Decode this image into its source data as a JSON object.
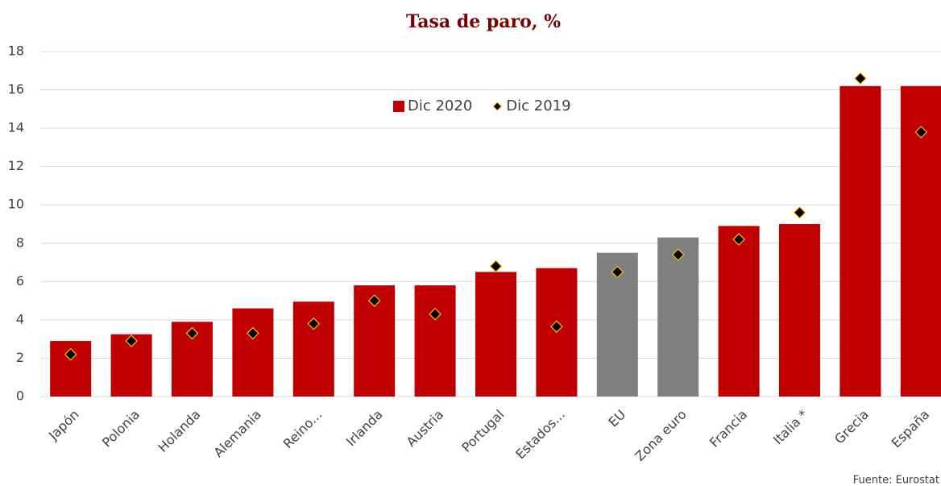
{
  "chart_data": {
    "type": "bar",
    "title": "Tasa de paro, %",
    "categories": [
      "Japón",
      "Polonia",
      "Holanda",
      "Alemania",
      "Reino...",
      "Irlanda",
      "Austria",
      "Portugal",
      "Estados...",
      "EU",
      "Zona euro",
      "Francia",
      "Italia *",
      "Grecia",
      "España"
    ],
    "series": [
      {
        "name": "Dic 2020",
        "kind": "bar",
        "color": "#c00000",
        "point_colors": [
          "#c00000",
          "#c00000",
          "#c00000",
          "#c00000",
          "#c00000",
          "#c00000",
          "#c00000",
          "#c00000",
          "#c00000",
          "#808080",
          "#808080",
          "#c00000",
          "#c00000",
          "#c00000",
          "#c00000"
        ],
        "values": [
          2.9,
          3.25,
          3.9,
          4.6,
          4.95,
          5.8,
          5.8,
          6.5,
          6.7,
          7.5,
          8.3,
          8.9,
          9.0,
          16.2,
          16.2
        ]
      },
      {
        "name": "Dic 2019",
        "kind": "diamond",
        "color": "#000000",
        "edge_color": "#ffc000",
        "values": [
          2.2,
          2.9,
          3.3,
          3.3,
          3.8,
          5.0,
          4.3,
          6.8,
          3.65,
          6.5,
          7.4,
          8.2,
          9.6,
          16.6,
          13.8
        ]
      }
    ],
    "ylim": [
      0,
      18
    ],
    "yticks": [
      0,
      2,
      4,
      6,
      8,
      10,
      12,
      14,
      16,
      18
    ],
    "grid": true,
    "legend_position": "top-center",
    "source": "Fuente: Eurostat"
  }
}
